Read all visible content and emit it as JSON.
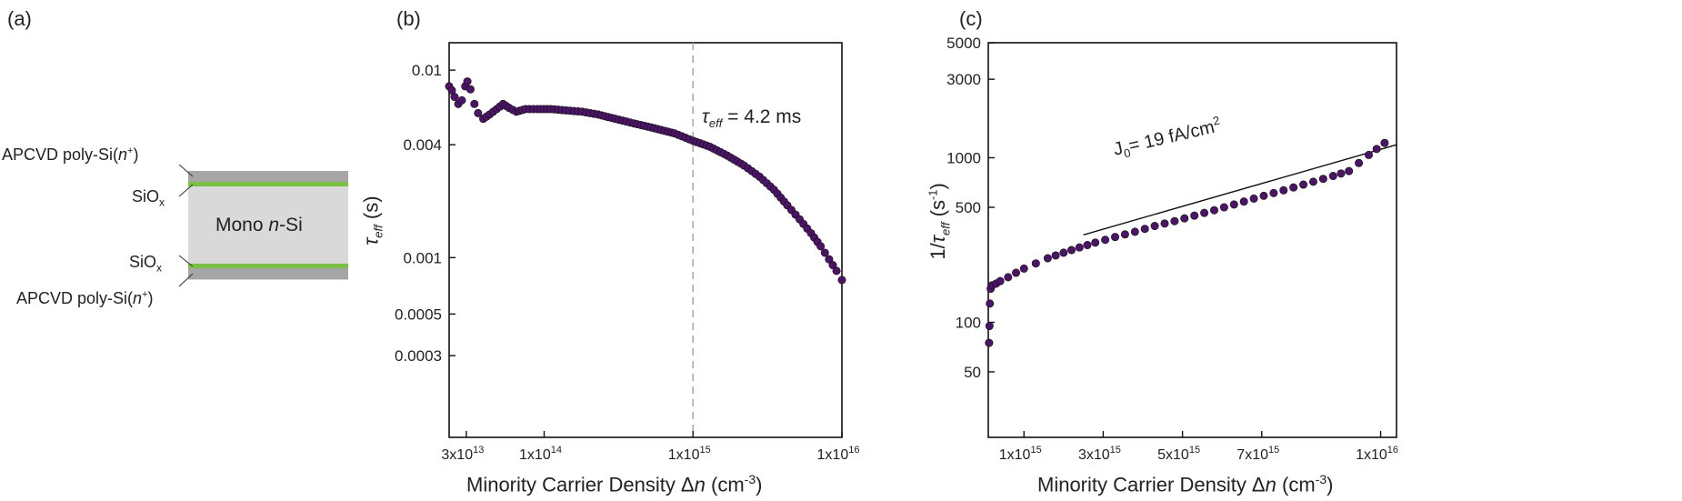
{
  "panels": {
    "a": "(a)",
    "b": "(b)",
    "c": "(c)"
  },
  "structure": {
    "top_poly": "APCVD poly-Si(",
    "top_poly_doping": "n",
    "top_poly_sup": "+",
    "top_oxide": "SiO",
    "top_oxide_sub": "x",
    "bulk_pre": "Mono ",
    "bulk_italic": "n",
    "bulk_post": "-Si",
    "bottom_oxide": "SiO",
    "bottom_oxide_sub": "x",
    "bottom_poly": "APCVD poly-Si(",
    "bottom_poly_doping": "n",
    "bottom_poly_sup": "+",
    "colors": {
      "wafer": "#d9d9d9",
      "poly": "#a6a6a6",
      "oxide": "#7ac143"
    }
  },
  "chart_data": [
    {
      "id": "b",
      "type": "scatter",
      "xscale": "log",
      "yscale": "log",
      "xlim": [
        23000000000000.0,
        1e+16
      ],
      "ylim": [
        0.00011,
        0.014
      ],
      "xticks": [
        {
          "v": 30000000000000.0,
          "m": "3x10",
          "e": "13"
        },
        {
          "v": 100000000000000.0,
          "m": "1x10",
          "e": "14"
        },
        {
          "v": 1000000000000000.0,
          "m": "1x10",
          "e": "15"
        },
        {
          "v": 1e+16,
          "m": "1x10",
          "e": "16"
        }
      ],
      "yticks": [
        {
          "v": 0.01,
          "t": "0.01"
        },
        {
          "v": 0.004,
          "t": "0.004"
        },
        {
          "v": 0.001,
          "t": "0.001"
        },
        {
          "v": 0.0005,
          "t": "0.0005"
        },
        {
          "v": 0.0003,
          "t": "0.0003"
        }
      ],
      "xlabel_pre": "Minority Carrier Density Δ",
      "xlabel_it": "n",
      "xlabel_unit": " (cm",
      "xlabel_sup": "-3",
      "xlabel_end": ")",
      "ylabel_sym": "τ",
      "ylabel_sub": "eff",
      "ylabel_unit": " (s)",
      "vline_x": 1000000000000000.0,
      "annotation_sym": "τ",
      "annotation_sub": "eff",
      "annotation_val": " = 4.2 ms",
      "marker_color": "#4b1466",
      "points": [
        [
          23000000000000.0,
          0.0082
        ],
        [
          24000000000000.0,
          0.0078
        ],
        [
          25000000000000.0,
          0.0072
        ],
        [
          26500000000000.0,
          0.0066
        ],
        [
          28000000000000.0,
          0.0069
        ],
        [
          29500000000000.0,
          0.0082
        ],
        [
          30500000000000.0,
          0.0087
        ],
        [
          32000000000000.0,
          0.0079
        ],
        [
          34000000000000.0,
          0.0066
        ],
        [
          36000000000000.0,
          0.0059
        ],
        [
          39000000000000.0,
          0.0055
        ],
        [
          43000000000000.0,
          0.0058
        ],
        [
          48000000000000.0,
          0.0062
        ],
        [
          53000000000000.0,
          0.0066
        ],
        [
          58000000000000.0,
          0.0063
        ],
        [
          65000000000000.0,
          0.006
        ],
        [
          75000000000000.0,
          0.0062
        ],
        [
          90000000000000.0,
          0.0062
        ],
        [
          110000000000000.0,
          0.0062
        ],
        [
          140000000000000.0,
          0.0061
        ],
        [
          180000000000000.0,
          0.006
        ],
        [
          230000000000000.0,
          0.0058
        ],
        [
          300000000000000.0,
          0.0055
        ],
        [
          400000000000000.0,
          0.0052
        ],
        [
          550000000000000.0,
          0.0049
        ],
        [
          750000000000000.0,
          0.0046
        ],
        [
          1000000000000000.0,
          0.0042
        ],
        [
          1300000000000000.0,
          0.0039
        ],
        [
          1700000000000000.0,
          0.0035
        ],
        [
          2200000000000000.0,
          0.0031
        ],
        [
          2800000000000000.0,
          0.0027
        ],
        [
          3500000000000000.0,
          0.0023
        ],
        [
          4300000000000000.0,
          0.0019
        ],
        [
          5200000000000000.0,
          0.0016
        ],
        [
          6200000000000000.0,
          0.00135
        ],
        [
          7200000000000000.0,
          0.00115
        ],
        [
          8200000000000000.0,
          0.00098
        ],
        [
          9200000000000000.0,
          0.00085
        ],
        [
          1e+16,
          0.00076
        ]
      ]
    },
    {
      "id": "c",
      "type": "scatter",
      "xscale": "linear",
      "yscale": "log",
      "xlim": [
        100000000000000.0,
        1.04e+16
      ],
      "ylim": [
        20,
        5000
      ],
      "xticks": [
        {
          "v": 1000000000000000.0,
          "m": "1x10",
          "e": "15"
        },
        {
          "v": 3000000000000000.0,
          "m": "3x10",
          "e": "15"
        },
        {
          "v": 5000000000000000.0,
          "m": "5x10",
          "e": "15"
        },
        {
          "v": 7000000000000000.0,
          "m": "7x10",
          "e": "15"
        },
        {
          "v": 1e+16,
          "m": "1x10",
          "e": "16"
        }
      ],
      "yticks": [
        {
          "v": 5000,
          "t": "5000"
        },
        {
          "v": 3000,
          "t": "3000"
        },
        {
          "v": 1000,
          "t": "1000"
        },
        {
          "v": 500,
          "t": "500"
        },
        {
          "v": 100,
          "t": "100"
        },
        {
          "v": 50,
          "t": "50"
        }
      ],
      "xlabel_pre": "Minority Carrier Density Δ",
      "xlabel_it": "n",
      "xlabel_unit": " (cm",
      "xlabel_sup": "-3",
      "xlabel_end": ")",
      "ylabel_pre": "1/",
      "ylabel_sym": "τ",
      "ylabel_sub": "eff",
      "ylabel_unit": " (s",
      "ylabel_sup": "-1",
      "ylabel_end": ")",
      "annotation_pre": "J",
      "annotation_sub": "0",
      "annotation_val": "= 19 fA/cm",
      "annotation_sup": "2",
      "fit_line": [
        [
          2500000000000000.0,
          340
        ],
        [
          1.04e+16,
          1200
        ]
      ],
      "marker_color": "#4b1466",
      "points": [
        [
          120000000000000.0,
          75
        ],
        [
          130000000000000.0,
          95
        ],
        [
          140000000000000.0,
          130
        ],
        [
          160000000000000.0,
          160
        ],
        [
          200000000000000.0,
          168
        ],
        [
          300000000000000.0,
          172
        ],
        [
          400000000000000.0,
          178
        ],
        [
          600000000000000.0,
          188
        ],
        [
          800000000000000.0,
          200
        ],
        [
          1000000000000000.0,
          212
        ],
        [
          1300000000000000.0,
          228
        ],
        [
          1600000000000000.0,
          245
        ],
        [
          2000000000000000.0,
          265
        ],
        [
          2400000000000000.0,
          285
        ],
        [
          2800000000000000.0,
          305
        ],
        [
          3300000000000000.0,
          330
        ],
        [
          3800000000000000.0,
          355
        ],
        [
          4300000000000000.0,
          385
        ],
        [
          4800000000000000.0,
          412
        ],
        [
          5300000000000000.0,
          445
        ],
        [
          5800000000000000.0,
          480
        ],
        [
          6300000000000000.0,
          520
        ],
        [
          6800000000000000.0,
          565
        ],
        [
          7300000000000000.0,
          610
        ],
        [
          7800000000000000.0,
          660
        ],
        [
          8300000000000000.0,
          715
        ],
        [
          8800000000000000.0,
          775
        ],
        [
          9200000000000000.0,
          830
        ],
        [
          9700000000000000.0,
          1040
        ],
        [
          1.01e+16,
          1230
        ]
      ]
    }
  ]
}
